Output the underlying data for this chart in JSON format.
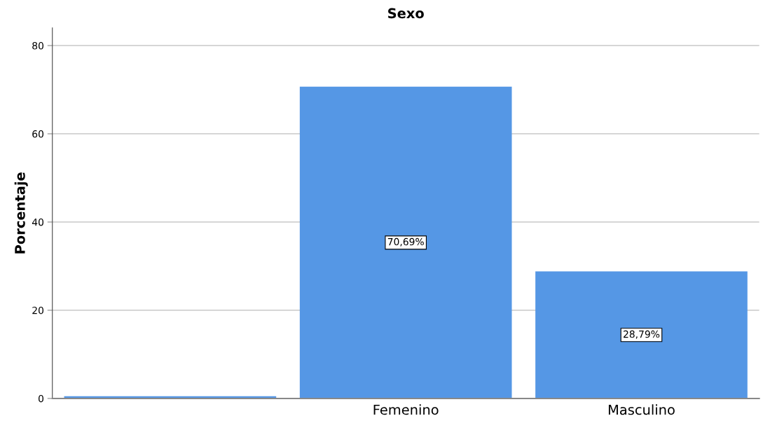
{
  "chart_data": {
    "type": "bar",
    "title": "Sexo",
    "ylabel": "Porcentaje",
    "categories": [
      null,
      "Femenino",
      "Masculino"
    ],
    "values": [
      0.5,
      70.69,
      28.79
    ],
    "value_labels": [
      null,
      "70,69%",
      "28,79%"
    ],
    "color": "#5597e5",
    "ylim": [
      0,
      84
    ],
    "yticks": [
      0,
      20,
      40,
      60,
      80
    ],
    "grid": "y"
  }
}
